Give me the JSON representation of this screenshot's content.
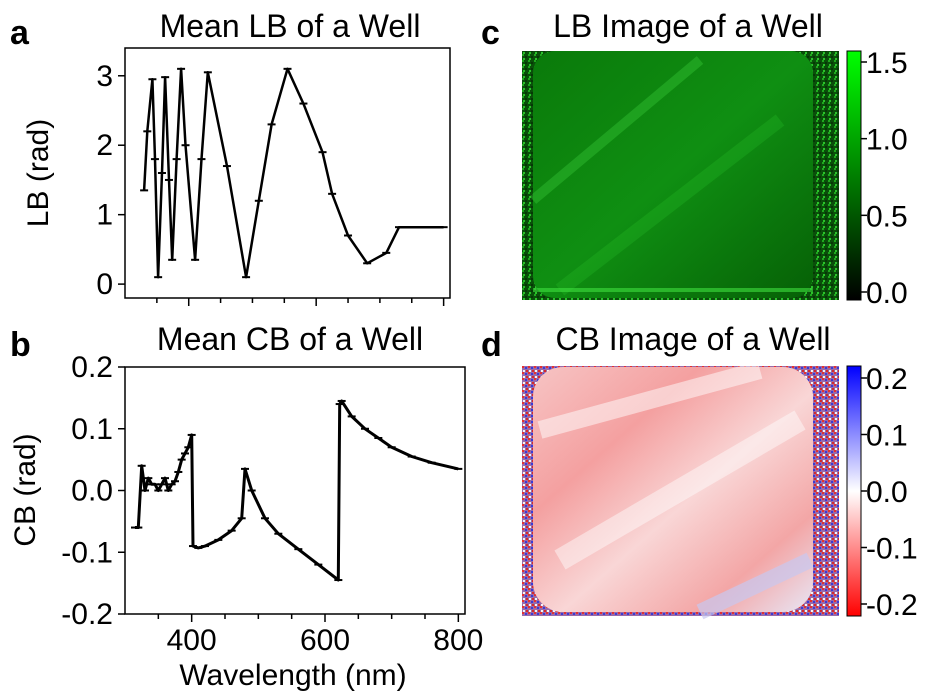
{
  "figure": {
    "panel_letters": [
      "a",
      "b",
      "c",
      "d"
    ]
  },
  "chart_data": [
    {
      "type": "line",
      "panel": "a",
      "title": "Mean LB of a Well",
      "xlabel": "",
      "ylabel": "LB (rad)",
      "xlim": [
        300,
        810
      ],
      "ylim": [
        -0.2,
        3.4
      ],
      "yticks": [
        0,
        1,
        2,
        3
      ],
      "ytick_labels": [
        "0",
        "1",
        "2",
        "3"
      ],
      "xticks": [
        400,
        600,
        800
      ],
      "grid": false,
      "series": [
        {
          "x": [
            330,
            335,
            343,
            347,
            352,
            358,
            363,
            369,
            374,
            381,
            388,
            395,
            410,
            420,
            430,
            460,
            490,
            510,
            530,
            555,
            580,
            610,
            625,
            650,
            680,
            710,
            730,
            745,
            760,
            780,
            800
          ],
          "values": [
            1.35,
            2.2,
            2.95,
            1.8,
            0.1,
            1.6,
            2.98,
            1.5,
            0.35,
            1.8,
            3.1,
            2.0,
            0.35,
            1.8,
            3.05,
            1.7,
            0.1,
            1.2,
            2.3,
            3.1,
            2.6,
            1.9,
            1.3,
            0.7,
            0.3,
            0.45,
            0.82,
            0.82,
            0.82,
            0.82,
            0.82
          ]
        }
      ]
    },
    {
      "type": "line",
      "panel": "b",
      "title": "Mean CB of a Well",
      "xlabel": "Wavelength (nm)",
      "ylabel": "CB (rad)",
      "xlim": [
        300,
        810
      ],
      "ylim": [
        -0.2,
        0.2
      ],
      "yticks": [
        -0.2,
        -0.1,
        0.0,
        0.1,
        0.2
      ],
      "ytick_labels": [
        "-0.2",
        "-0.1",
        "0.0",
        "0.1",
        "0.2"
      ],
      "xticks": [
        400,
        600,
        800
      ],
      "xtick_labels": [
        "400",
        "600",
        "800"
      ],
      "grid": false,
      "series": [
        {
          "x": [
            315,
            320,
            325,
            330,
            335,
            340,
            345,
            350,
            355,
            360,
            365,
            370,
            375,
            380,
            385,
            390,
            395,
            400,
            402,
            410,
            420,
            440,
            460,
            475,
            480,
            490,
            510,
            530,
            560,
            590,
            620,
            622,
            625,
            640,
            660,
            680,
            700,
            730,
            760,
            800
          ],
          "values": [
            -0.06,
            -0.06,
            0.04,
            0.0,
            0.02,
            0.01,
            0.01,
            0.0,
            0.01,
            0.02,
            0.0,
            0.01,
            0.015,
            0.03,
            0.05,
            0.06,
            0.07,
            0.09,
            -0.09,
            -0.093,
            -0.09,
            -0.08,
            -0.065,
            -0.045,
            0.035,
            0.0,
            -0.045,
            -0.07,
            -0.095,
            -0.12,
            -0.145,
            0.14,
            0.145,
            0.12,
            0.1,
            0.085,
            0.07,
            0.055,
            0.045,
            0.035
          ]
        }
      ]
    },
    {
      "type": "heatmap",
      "panel": "c",
      "title": "LB Image of a Well",
      "colorbar": {
        "range": [
          0.0,
          1.5
        ],
        "ticks": [
          "1.5",
          "1.0",
          "0.5",
          "0.0"
        ],
        "colors": [
          "#00ff00",
          "#000000"
        ]
      }
    },
    {
      "type": "heatmap",
      "panel": "d",
      "title": "CB Image of a Well",
      "colorbar": {
        "range": [
          -0.2,
          0.2
        ],
        "ticks": [
          "0.2",
          "0.1",
          "0.0",
          "-0.1",
          "-0.2"
        ],
        "colors": [
          "#0000ff",
          "#ffffff",
          "#ff0000"
        ]
      }
    }
  ]
}
